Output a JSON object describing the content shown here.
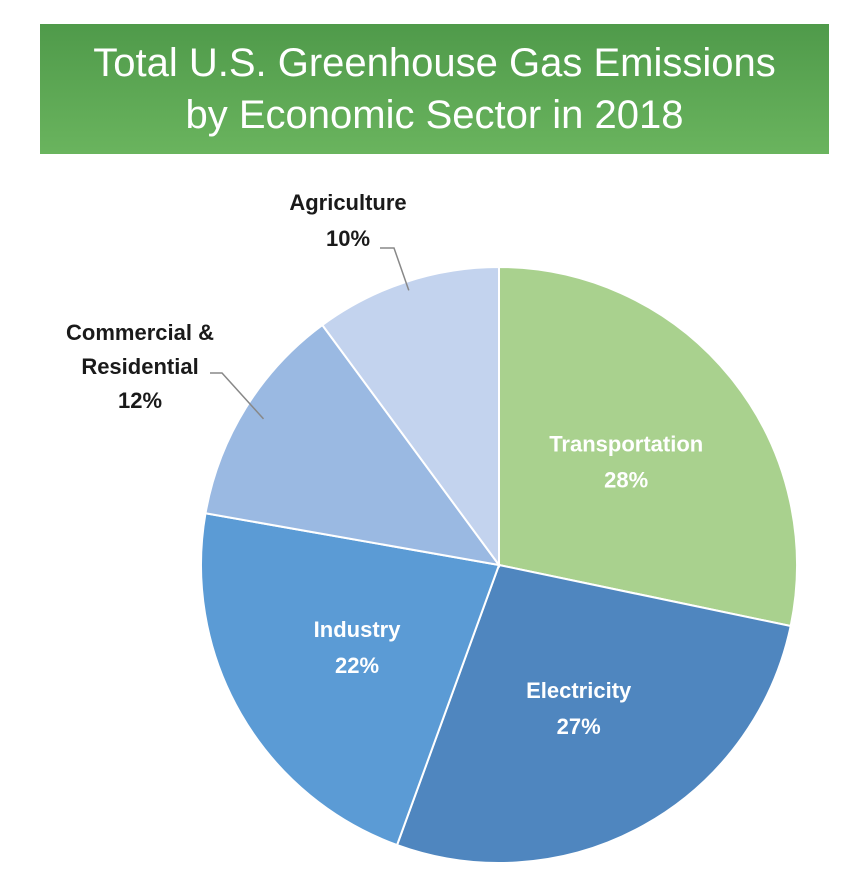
{
  "chart_data": {
    "type": "pie",
    "title_lines": [
      "Total U.S. Greenhouse Gas Emissions",
      "by Economic Sector in 2018"
    ],
    "slices": [
      {
        "label_lines": [
          "Transportation"
        ],
        "value": 28,
        "value_label": "28%",
        "color": "#a9d18e",
        "label_color": "#ffffff",
        "label_position": "inside"
      },
      {
        "label_lines": [
          "Electricity"
        ],
        "value": 27,
        "value_label": "27%",
        "color": "#4f86bf",
        "label_color": "#ffffff",
        "label_position": "inside"
      },
      {
        "label_lines": [
          "Industry"
        ],
        "value": 22,
        "value_label": "22%",
        "color": "#5b9bd5",
        "label_color": "#ffffff",
        "label_position": "inside"
      },
      {
        "label_lines": [
          "Commercial &",
          "Residential"
        ],
        "value": 12,
        "value_label": "12%",
        "color": "#9ab9e2",
        "label_color": "#1a1a1a",
        "label_position": "outside-left"
      },
      {
        "label_lines": [
          "Agriculture"
        ],
        "value": 10,
        "value_label": "10%",
        "color": "#c3d3ee",
        "label_color": "#1a1a1a",
        "label_position": "outside-top"
      }
    ],
    "start_direction": "12 o'clock",
    "direction": "clockwise",
    "legend": "none"
  }
}
